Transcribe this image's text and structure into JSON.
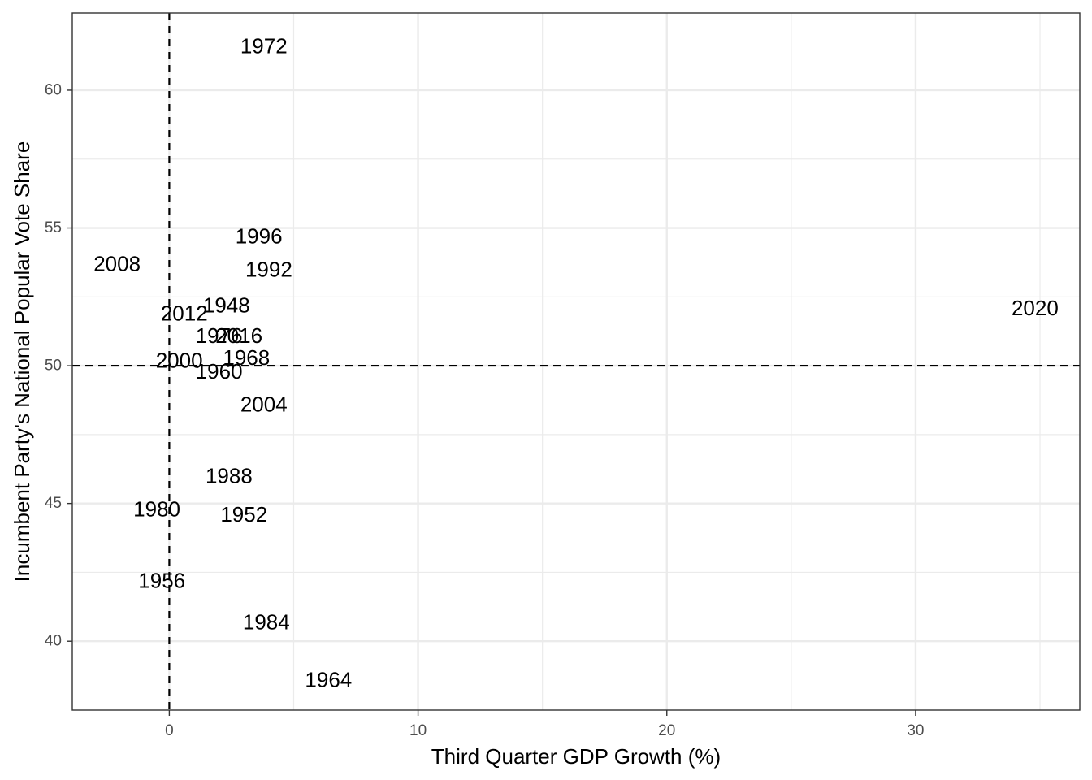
{
  "chart_data": {
    "type": "scatter",
    "title": "",
    "xlabel": "Third Quarter GDP Growth (%)",
    "ylabel": "Incumbent Party's National Popular Vote Share",
    "xlim": [
      -3.9,
      36.6
    ],
    "ylim": [
      37.5,
      62.8
    ],
    "x_ticks": [
      0,
      10,
      20,
      30
    ],
    "y_ticks": [
      40,
      45,
      50,
      55,
      60
    ],
    "x_minor_ticks": [
      5,
      15,
      25,
      35
    ],
    "y_minor_ticks": [
      42.5,
      47.5,
      52.5,
      57.5
    ],
    "grid": true,
    "reference_lines": {
      "x": 0,
      "y": 50,
      "style": "dashed"
    },
    "marker": "text",
    "points": [
      {
        "label": "1948",
        "x": 2.3,
        "y": 52.2
      },
      {
        "label": "1952",
        "x": 3.0,
        "y": 44.6
      },
      {
        "label": "1956",
        "x": -0.3,
        "y": 42.2
      },
      {
        "label": "1960",
        "x": 2.0,
        "y": 49.8
      },
      {
        "label": "1964",
        "x": 6.4,
        "y": 38.6
      },
      {
        "label": "1968",
        "x": 3.1,
        "y": 50.3
      },
      {
        "label": "1972",
        "x": 3.8,
        "y": 61.6
      },
      {
        "label": "1976",
        "x": 2.0,
        "y": 51.1
      },
      {
        "label": "1980",
        "x": -0.5,
        "y": 44.8
      },
      {
        "label": "1984",
        "x": 3.9,
        "y": 40.7
      },
      {
        "label": "1988",
        "x": 2.4,
        "y": 46.0
      },
      {
        "label": "1992",
        "x": 4.0,
        "y": 53.5
      },
      {
        "label": "1996",
        "x": 3.6,
        "y": 54.7
      },
      {
        "label": "2000",
        "x": 0.4,
        "y": 50.2
      },
      {
        "label": "2004",
        "x": 3.8,
        "y": 48.6
      },
      {
        "label": "2008",
        "x": -2.1,
        "y": 53.7
      },
      {
        "label": "2012",
        "x": 0.6,
        "y": 51.9
      },
      {
        "label": "2016",
        "x": 2.8,
        "y": 51.1
      },
      {
        "label": "2020",
        "x": 34.8,
        "y": 52.1
      }
    ]
  }
}
